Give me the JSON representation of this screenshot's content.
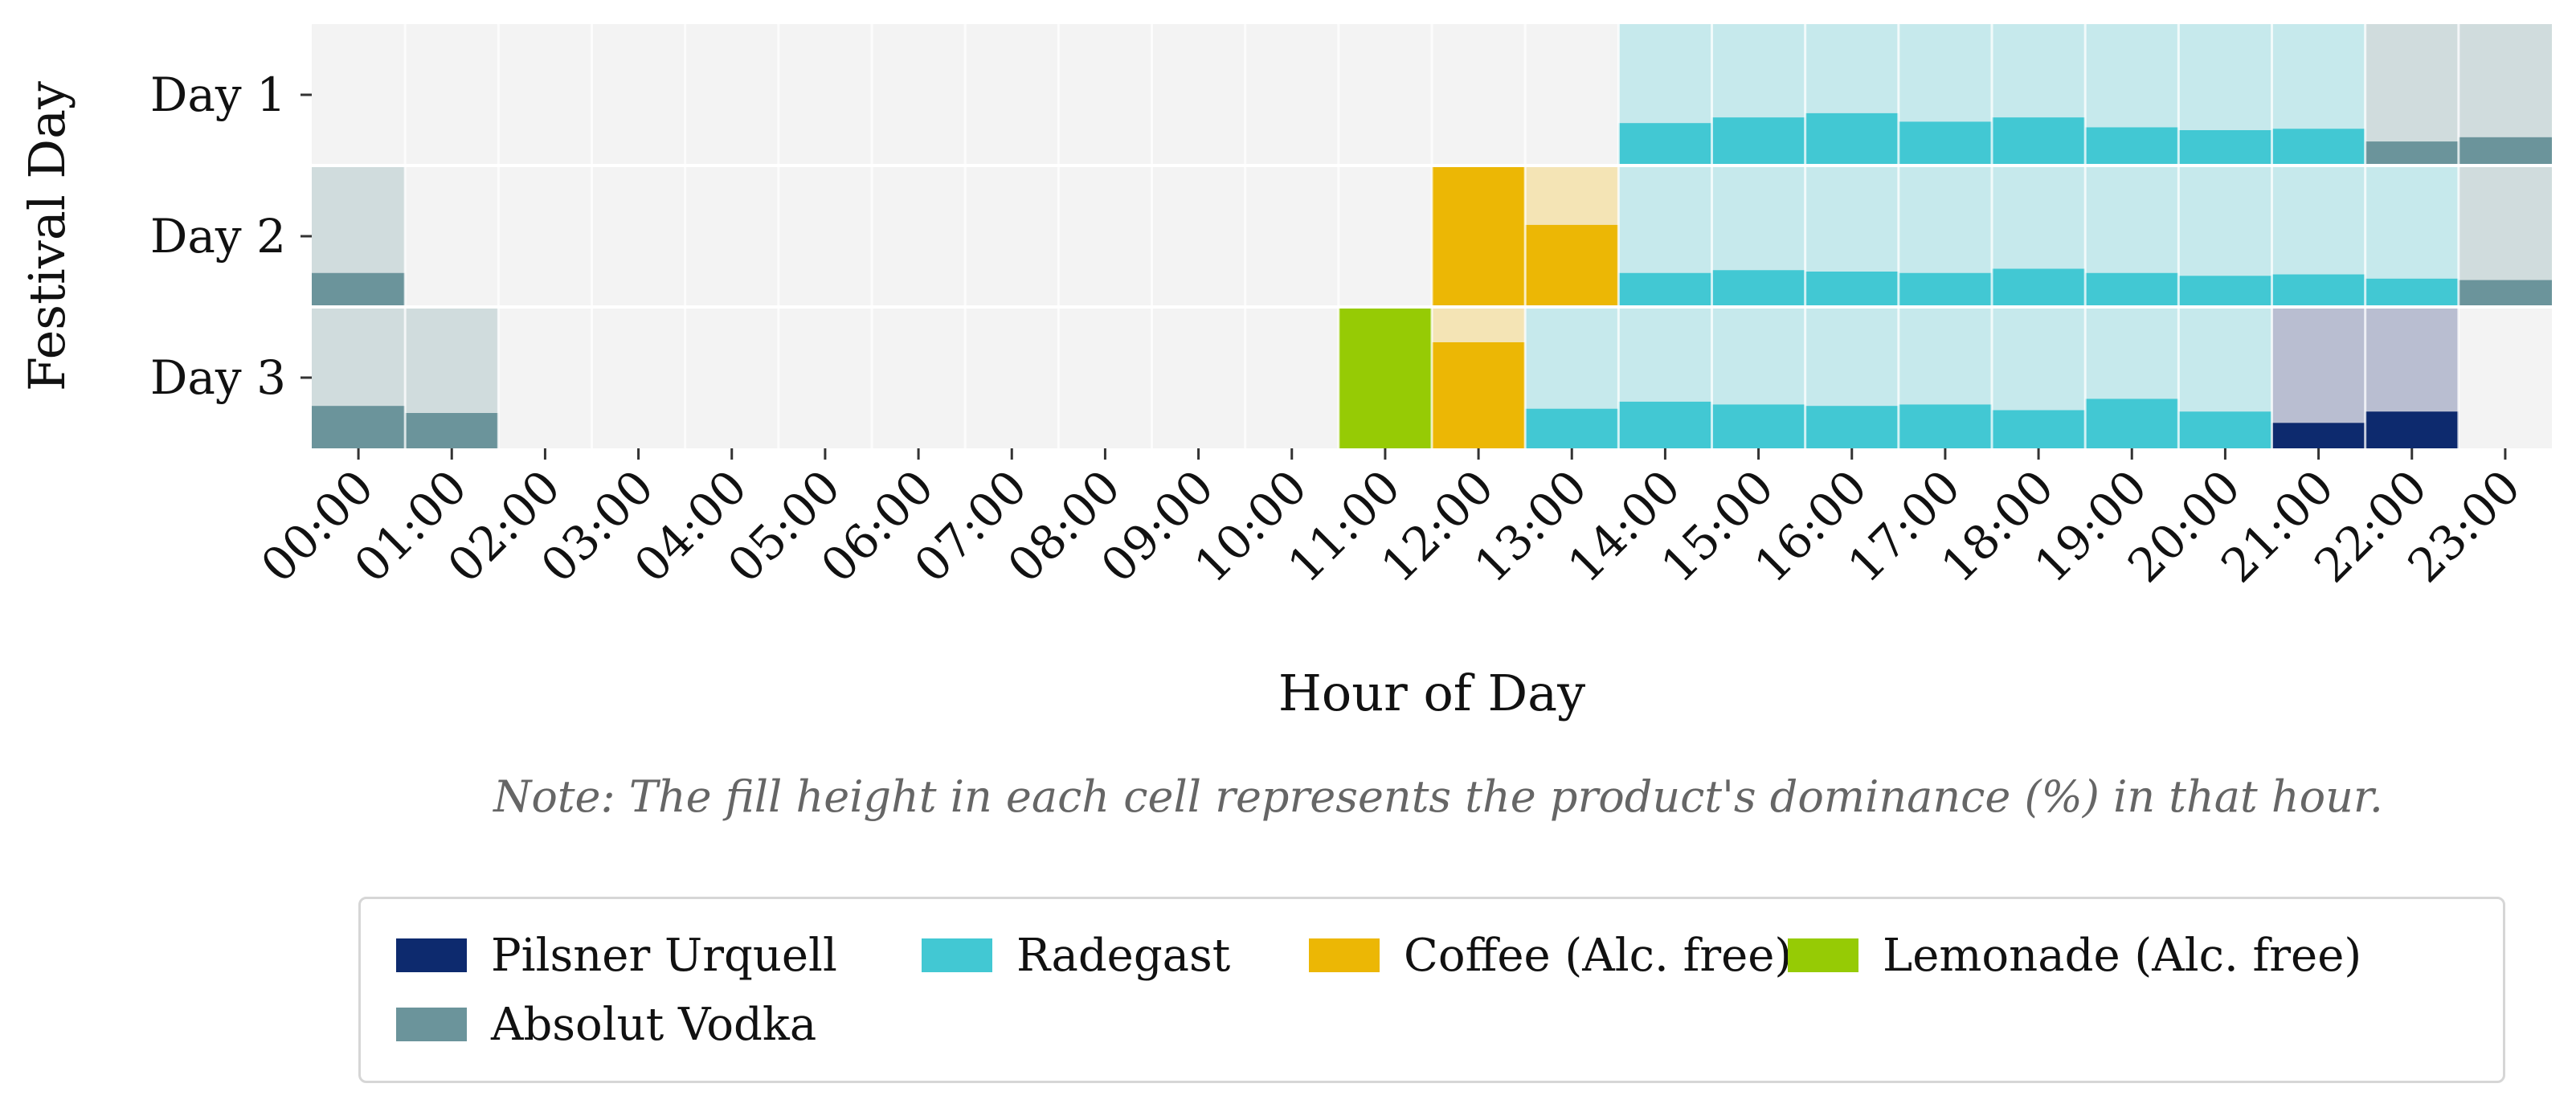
{
  "chart_data": {
    "type": "heatmap",
    "title": "",
    "xlabel": "Hour of Day",
    "ylabel": "Festival Day",
    "x_categories": [
      "00:00",
      "01:00",
      "02:00",
      "03:00",
      "04:00",
      "05:00",
      "06:00",
      "07:00",
      "08:00",
      "09:00",
      "10:00",
      "11:00",
      "12:00",
      "13:00",
      "14:00",
      "15:00",
      "16:00",
      "17:00",
      "18:00",
      "19:00",
      "20:00",
      "21:00",
      "22:00",
      "23:00"
    ],
    "y_categories": [
      "Day 1",
      "Day 2",
      "Day 3"
    ],
    "note": "Note: The fill height in each cell represents the product's dominance (%) in that hour.",
    "legend_position": "bottom",
    "grid": true,
    "products": [
      {
        "name": "Pilsner Urquell",
        "color": "#0d2a6e",
        "light": "#b9bed1"
      },
      {
        "name": "Radegast",
        "color": "#42c8d3",
        "light": "#c6e9ec"
      },
      {
        "name": "Coffee (Alc. free)",
        "color": "#ecb705",
        "light": "#f4e4b5"
      },
      {
        "name": "Lemonade (Alc. free)",
        "color": "#96cb05",
        "light": "#dcefb0"
      },
      {
        "name": "Absolut Vodka",
        "color": "#6b949b",
        "light": "#d0dcdd"
      }
    ],
    "cells": [
      {
        "day": "Day 1",
        "hour": "14:00",
        "product": "Radegast",
        "dominance": 30
      },
      {
        "day": "Day 1",
        "hour": "15:00",
        "product": "Radegast",
        "dominance": 34
      },
      {
        "day": "Day 1",
        "hour": "16:00",
        "product": "Radegast",
        "dominance": 37
      },
      {
        "day": "Day 1",
        "hour": "17:00",
        "product": "Radegast",
        "dominance": 31
      },
      {
        "day": "Day 1",
        "hour": "18:00",
        "product": "Radegast",
        "dominance": 34
      },
      {
        "day": "Day 1",
        "hour": "19:00",
        "product": "Radegast",
        "dominance": 27
      },
      {
        "day": "Day 1",
        "hour": "20:00",
        "product": "Radegast",
        "dominance": 25
      },
      {
        "day": "Day 1",
        "hour": "21:00",
        "product": "Radegast",
        "dominance": 26
      },
      {
        "day": "Day 1",
        "hour": "22:00",
        "product": "Absolut Vodka",
        "dominance": 17
      },
      {
        "day": "Day 1",
        "hour": "23:00",
        "product": "Absolut Vodka",
        "dominance": 20
      },
      {
        "day": "Day 2",
        "hour": "00:00",
        "product": "Absolut Vodka",
        "dominance": 24
      },
      {
        "day": "Day 2",
        "hour": "12:00",
        "product": "Coffee (Alc. free)",
        "dominance": 100
      },
      {
        "day": "Day 2",
        "hour": "13:00",
        "product": "Coffee (Alc. free)",
        "dominance": 58
      },
      {
        "day": "Day 2",
        "hour": "14:00",
        "product": "Radegast",
        "dominance": 24
      },
      {
        "day": "Day 2",
        "hour": "15:00",
        "product": "Radegast",
        "dominance": 26
      },
      {
        "day": "Day 2",
        "hour": "16:00",
        "product": "Radegast",
        "dominance": 25
      },
      {
        "day": "Day 2",
        "hour": "17:00",
        "product": "Radegast",
        "dominance": 24
      },
      {
        "day": "Day 2",
        "hour": "18:00",
        "product": "Radegast",
        "dominance": 27
      },
      {
        "day": "Day 2",
        "hour": "19:00",
        "product": "Radegast",
        "dominance": 24
      },
      {
        "day": "Day 2",
        "hour": "20:00",
        "product": "Radegast",
        "dominance": 22
      },
      {
        "day": "Day 2",
        "hour": "21:00",
        "product": "Radegast",
        "dominance": 23
      },
      {
        "day": "Day 2",
        "hour": "22:00",
        "product": "Radegast",
        "dominance": 20
      },
      {
        "day": "Day 2",
        "hour": "23:00",
        "product": "Absolut Vodka",
        "dominance": 19
      },
      {
        "day": "Day 3",
        "hour": "00:00",
        "product": "Absolut Vodka",
        "dominance": 30
      },
      {
        "day": "Day 3",
        "hour": "01:00",
        "product": "Absolut Vodka",
        "dominance": 25
      },
      {
        "day": "Day 3",
        "hour": "11:00",
        "product": "Lemonade (Alc. free)",
        "dominance": 100
      },
      {
        "day": "Day 3",
        "hour": "12:00",
        "product": "Coffee (Alc. free)",
        "dominance": 75
      },
      {
        "day": "Day 3",
        "hour": "13:00",
        "product": "Radegast",
        "dominance": 28
      },
      {
        "day": "Day 3",
        "hour": "14:00",
        "product": "Radegast",
        "dominance": 33
      },
      {
        "day": "Day 3",
        "hour": "15:00",
        "product": "Radegast",
        "dominance": 31
      },
      {
        "day": "Day 3",
        "hour": "16:00",
        "product": "Radegast",
        "dominance": 30
      },
      {
        "day": "Day 3",
        "hour": "17:00",
        "product": "Radegast",
        "dominance": 31
      },
      {
        "day": "Day 3",
        "hour": "18:00",
        "product": "Radegast",
        "dominance": 27
      },
      {
        "day": "Day 3",
        "hour": "19:00",
        "product": "Radegast",
        "dominance": 35
      },
      {
        "day": "Day 3",
        "hour": "20:00",
        "product": "Radegast",
        "dominance": 26
      },
      {
        "day": "Day 3",
        "hour": "21:00",
        "product": "Pilsner Urquell",
        "dominance": 18
      },
      {
        "day": "Day 3",
        "hour": "22:00",
        "product": "Pilsner Urquell",
        "dominance": 26
      }
    ]
  }
}
